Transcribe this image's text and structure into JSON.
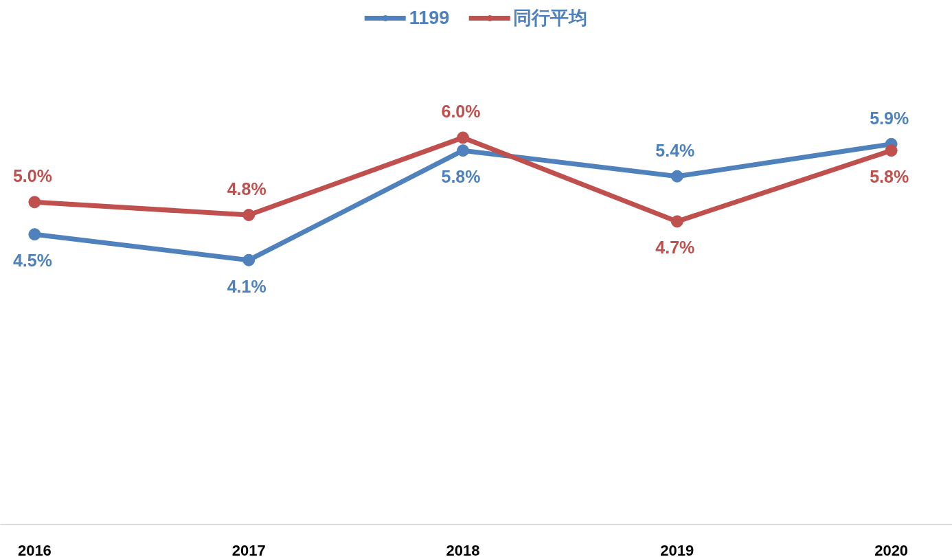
{
  "chart_data": {
    "type": "line",
    "categories": [
      "2016",
      "2017",
      "2018",
      "2019",
      "2020"
    ],
    "series": [
      {
        "name": "1199",
        "color": "#4f81bd",
        "values": [
          4.5,
          4.1,
          5.8,
          5.4,
          5.9
        ],
        "value_labels": [
          "4.5%",
          "4.1%",
          "5.8%",
          "5.4%",
          "5.9%"
        ]
      },
      {
        "name": "同行平均",
        "color": "#c0504d",
        "values": [
          5.0,
          4.8,
          6.0,
          4.7,
          5.8
        ],
        "value_labels": [
          "5.0%",
          "4.8%",
          "6.0%",
          "4.7%",
          "5.8%"
        ]
      }
    ],
    "legend": "top",
    "marker": "circle",
    "line_style": "solid",
    "grid": false,
    "tick_labels": "x"
  }
}
